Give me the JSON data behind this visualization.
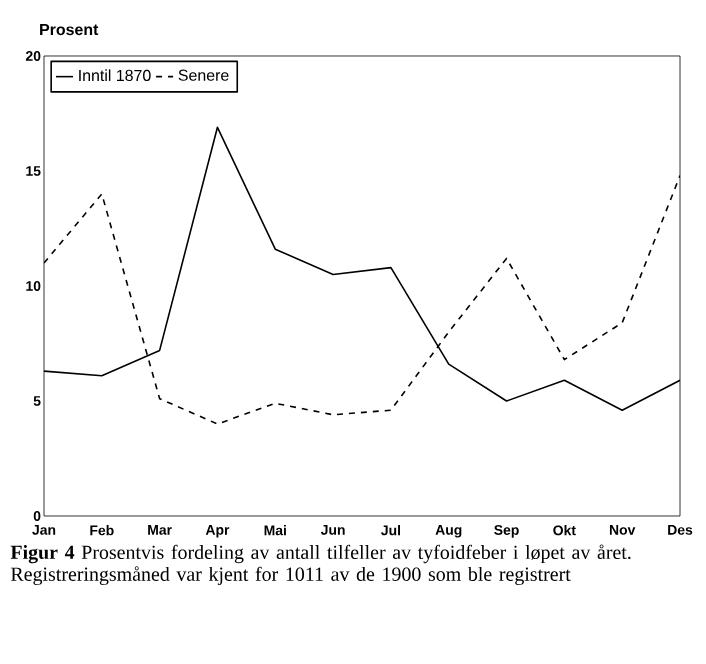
{
  "chart_data": {
    "type": "line",
    "ylabel": "Prosent",
    "categories": [
      "Jan",
      "Feb",
      "Mar",
      "Apr",
      "Mai",
      "Jun",
      "Jul",
      "Aug",
      "Sep",
      "Okt",
      "Nov",
      "Des"
    ],
    "series": [
      {
        "name": "Inntil 1870",
        "color": "#000000",
        "line_style": "solid",
        "values": [
          6.3,
          6.1,
          7.2,
          16.9,
          11.6,
          10.5,
          10.8,
          6.6,
          5.0,
          5.9,
          4.6,
          5.9
        ]
      },
      {
        "name": "Senere",
        "color": "#000000",
        "line_style": "dashed",
        "values": [
          11.0,
          14.0,
          5.1,
          4.0,
          4.9,
          4.4,
          4.6,
          8.0,
          11.2,
          6.8,
          8.4,
          14.8
        ]
      }
    ],
    "ylim": [
      0,
      20
    ],
    "yticks": [
      0,
      5,
      10,
      15,
      20
    ],
    "legend": "top left",
    "grid": false,
    "marker": "none",
    "annotations": [
      "**Figur 4**   Prosentvis fordeling av antall tilfeller av tyfoidfeber i løpet av året. Registreringsmåned var kjent for 1011 av de 1900 som ble registrert"
    ]
  }
}
